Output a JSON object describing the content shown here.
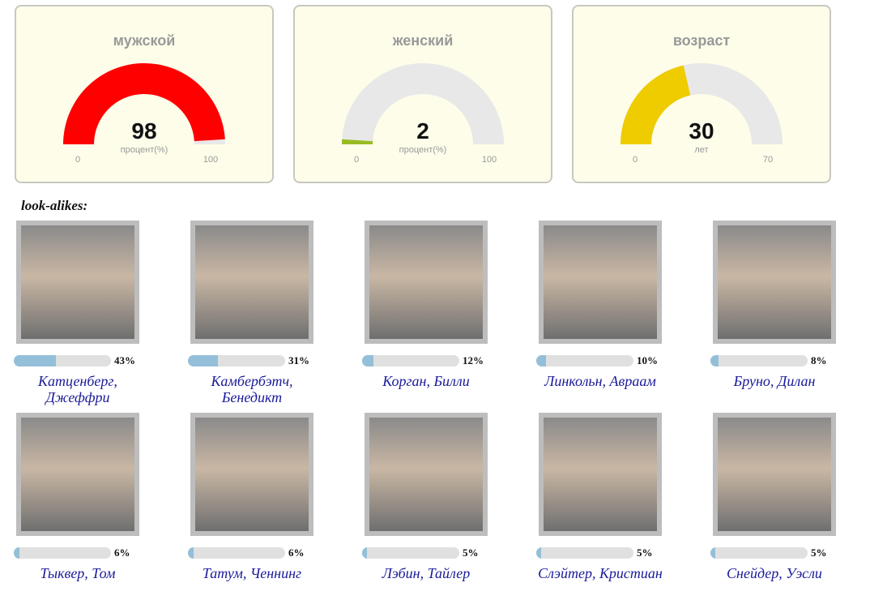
{
  "gauges": [
    {
      "title": "мужской",
      "value": 98,
      "unit": "процент(%)",
      "min": 0,
      "max": 100,
      "color": "#ff0000"
    },
    {
      "title": "женский",
      "value": 2,
      "unit": "процент(%)",
      "min": 0,
      "max": 100,
      "color": "#99bb22"
    },
    {
      "title": "возраст",
      "value": 30,
      "unit": "лет",
      "min": 0,
      "max": 70,
      "color": "#eecc00"
    }
  ],
  "section_title": "look-alikes:",
  "people": [
    {
      "name": "Катценберг, Джеффри",
      "percent": {
        "value": 43,
        "label": "43%"
      }
    },
    {
      "name": "Камбербэтч, Бенедикт",
      "percent": {
        "value": 31,
        "label": "31%"
      }
    },
    {
      "name": "Корган, Билли",
      "percent": {
        "value": 12,
        "label": "12%"
      }
    },
    {
      "name": "Линкольн, Авраам",
      "percent": {
        "value": 10,
        "label": "10%"
      }
    },
    {
      "name": "Бруно, Дилан",
      "percent": {
        "value": 8,
        "label": "8%"
      }
    },
    {
      "name": "Тыквер, Том",
      "percent": {
        "value": 6,
        "label": "6%"
      }
    },
    {
      "name": "Татум, Ченнинг",
      "percent": {
        "value": 6,
        "label": "6%"
      }
    },
    {
      "name": "Лэбин, Тайлер",
      "percent": {
        "value": 5,
        "label": "5%"
      }
    },
    {
      "name": "Слэйтер, Кристиан",
      "percent": {
        "value": 5,
        "label": "5%"
      }
    },
    {
      "name": "Снейдер, Уэсли",
      "percent": {
        "value": 5,
        "label": "5%"
      }
    }
  ]
}
